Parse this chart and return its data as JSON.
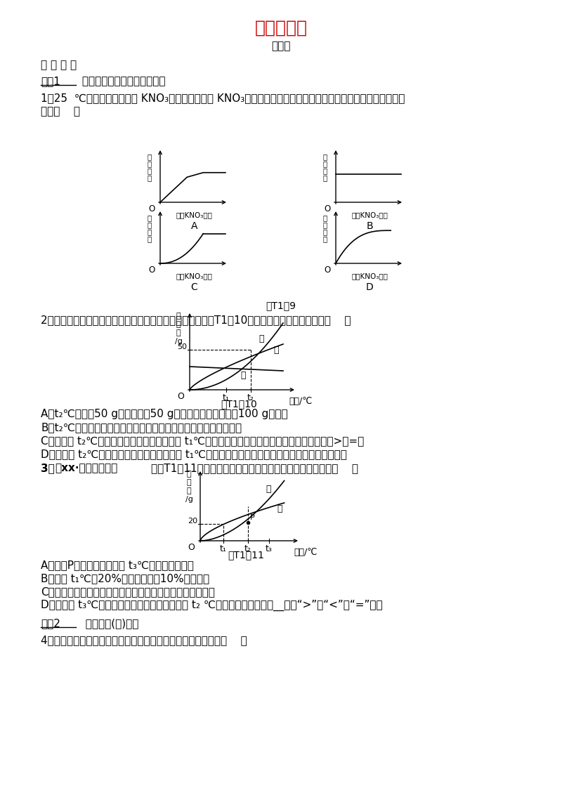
{
  "title": "题型突破一",
  "subtitle": "图像题",
  "background_color": "#ffffff",
  "title_color": "#cc0000",
  "fig_t1_9_caption": "图T1＆9",
  "fig_t1_10_caption": "图T1＆10",
  "fig_t1_11_caption": "图T1＆11",
  "q2_options": [
    "A．t₂℃时，局50 g甲物质放兦50 g水中，充分搅拌后得到100 g甲溶液",
    "B．t₂℃时，配制等质量的三种物质的饱和溶液，甲所需要的水最少",
    "C．分别将 t₂℃时三种物质的饱和溶液降温至 t₁℃，所得溶液中溶质的质量分数的大小关系为乙>甲=丙",
    "D．分别将 t₂℃时三种物质的饱和溶液降温到 t₁℃，甲溶液中析出的晶体最多，丙溶液中无晶体析出"
  ],
  "q3_options": [
    "A．图中P点所表示的溶液是 t₃℃时甲的饱和溶液",
    "B．可用 t₁℃时20%的甲溶液配刱10%的甲溶液",
    "C．若甲中含有少量乙，可采用冷却热饱和溶液的方法提纯甲",
    "D．分别将 t₃℃等质量的甲、乙饱和溶液降温至 t₂ ℃，形成的溶液质量甲__（填“>”、“<”或“=”）乙"
  ]
}
